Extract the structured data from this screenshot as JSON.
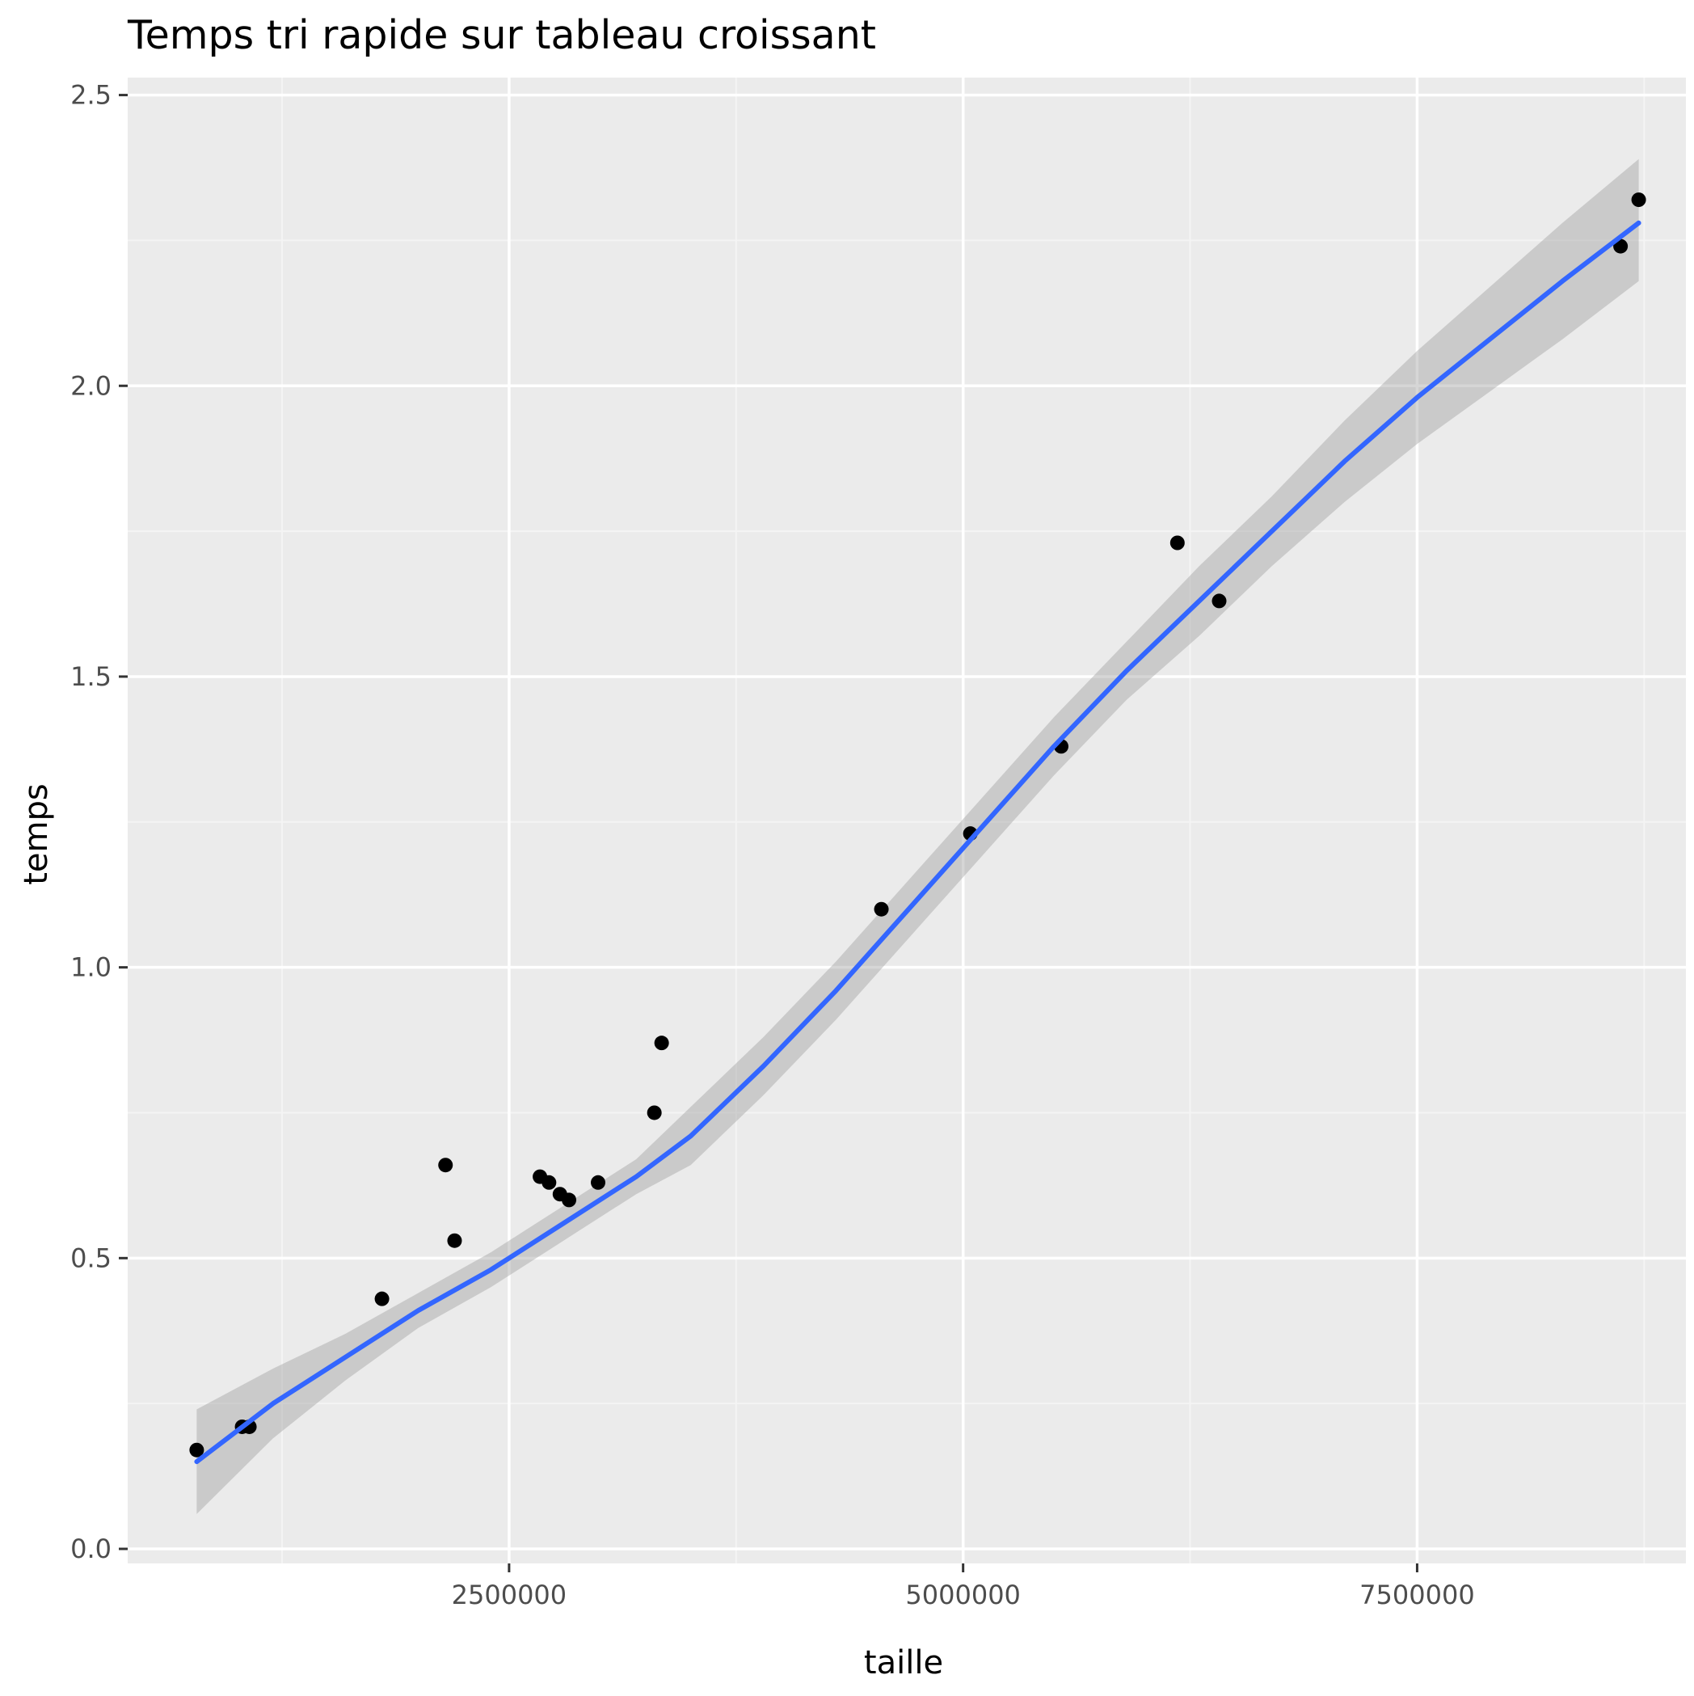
{
  "chart_data": {
    "type": "scatter",
    "title": "Temps tri rapide sur tableau croissant",
    "xlabel": "taille",
    "ylabel": "temps",
    "xlim": [
      400000,
      8980000
    ],
    "ylim": [
      -0.025,
      2.53
    ],
    "x_ticks": [
      {
        "value": 2500000,
        "label": "2500000"
      },
      {
        "value": 5000000,
        "label": "5000000"
      },
      {
        "value": 7500000,
        "label": "7500000"
      }
    ],
    "y_ticks": [
      {
        "value": 0.0,
        "label": "0.0"
      },
      {
        "value": 0.5,
        "label": "0.5"
      },
      {
        "value": 1.0,
        "label": "1.0"
      },
      {
        "value": 1.5,
        "label": "1.5"
      },
      {
        "value": 2.0,
        "label": "2.0"
      },
      {
        "value": 2.5,
        "label": "2.5"
      }
    ],
    "x_minor_ticks": [
      1250000,
      3750000,
      6250000,
      8750000
    ],
    "y_minor_ticks": [
      0.25,
      0.75,
      1.25,
      1.75,
      2.25
    ],
    "points": [
      {
        "x": 780000,
        "y": 0.17
      },
      {
        "x": 1030000,
        "y": 0.21
      },
      {
        "x": 1070000,
        "y": 0.21
      },
      {
        "x": 1800000,
        "y": 0.43
      },
      {
        "x": 2150000,
        "y": 0.66
      },
      {
        "x": 2200000,
        "y": 0.53
      },
      {
        "x": 2670000,
        "y": 0.64
      },
      {
        "x": 2720000,
        "y": 0.63
      },
      {
        "x": 2780000,
        "y": 0.61
      },
      {
        "x": 2830000,
        "y": 0.6
      },
      {
        "x": 2990000,
        "y": 0.63
      },
      {
        "x": 3300000,
        "y": 0.75
      },
      {
        "x": 3340000,
        "y": 0.87
      },
      {
        "x": 4550000,
        "y": 1.1
      },
      {
        "x": 5040000,
        "y": 1.23
      },
      {
        "x": 5540000,
        "y": 1.38
      },
      {
        "x": 6180000,
        "y": 1.73
      },
      {
        "x": 6410000,
        "y": 1.63
      },
      {
        "x": 8620000,
        "y": 2.24
      },
      {
        "x": 8720000,
        "y": 2.32
      }
    ],
    "smooth_fit": {
      "x": [
        780000,
        1200000,
        1600000,
        2000000,
        2400000,
        2800000,
        3200000,
        3500000,
        3900000,
        4300000,
        4700000,
        5100000,
        5500000,
        5900000,
        6300000,
        6700000,
        7100000,
        7500000,
        7900000,
        8300000,
        8720000
      ],
      "y": [
        0.15,
        0.25,
        0.33,
        0.41,
        0.48,
        0.56,
        0.64,
        0.71,
        0.83,
        0.96,
        1.1,
        1.24,
        1.38,
        1.51,
        1.63,
        1.75,
        1.87,
        1.98,
        2.08,
        2.18,
        2.28
      ],
      "ci_lower": [
        0.06,
        0.19,
        0.29,
        0.38,
        0.45,
        0.53,
        0.61,
        0.66,
        0.78,
        0.91,
        1.05,
        1.19,
        1.33,
        1.46,
        1.57,
        1.69,
        1.8,
        1.9,
        1.99,
        2.08,
        2.18
      ],
      "ci_upper": [
        0.24,
        0.31,
        0.37,
        0.44,
        0.51,
        0.59,
        0.67,
        0.76,
        0.88,
        1.01,
        1.15,
        1.29,
        1.43,
        1.56,
        1.69,
        1.81,
        1.94,
        2.06,
        2.17,
        2.28,
        2.39
      ]
    },
    "grid": true,
    "legend": "none",
    "colors": {
      "panel": "#ebebeb",
      "grid_major": "#ffffff",
      "grid_minor": "#f4f4f4",
      "point": "#000000",
      "line": "#3366ff",
      "ribbon": "#999999"
    }
  }
}
